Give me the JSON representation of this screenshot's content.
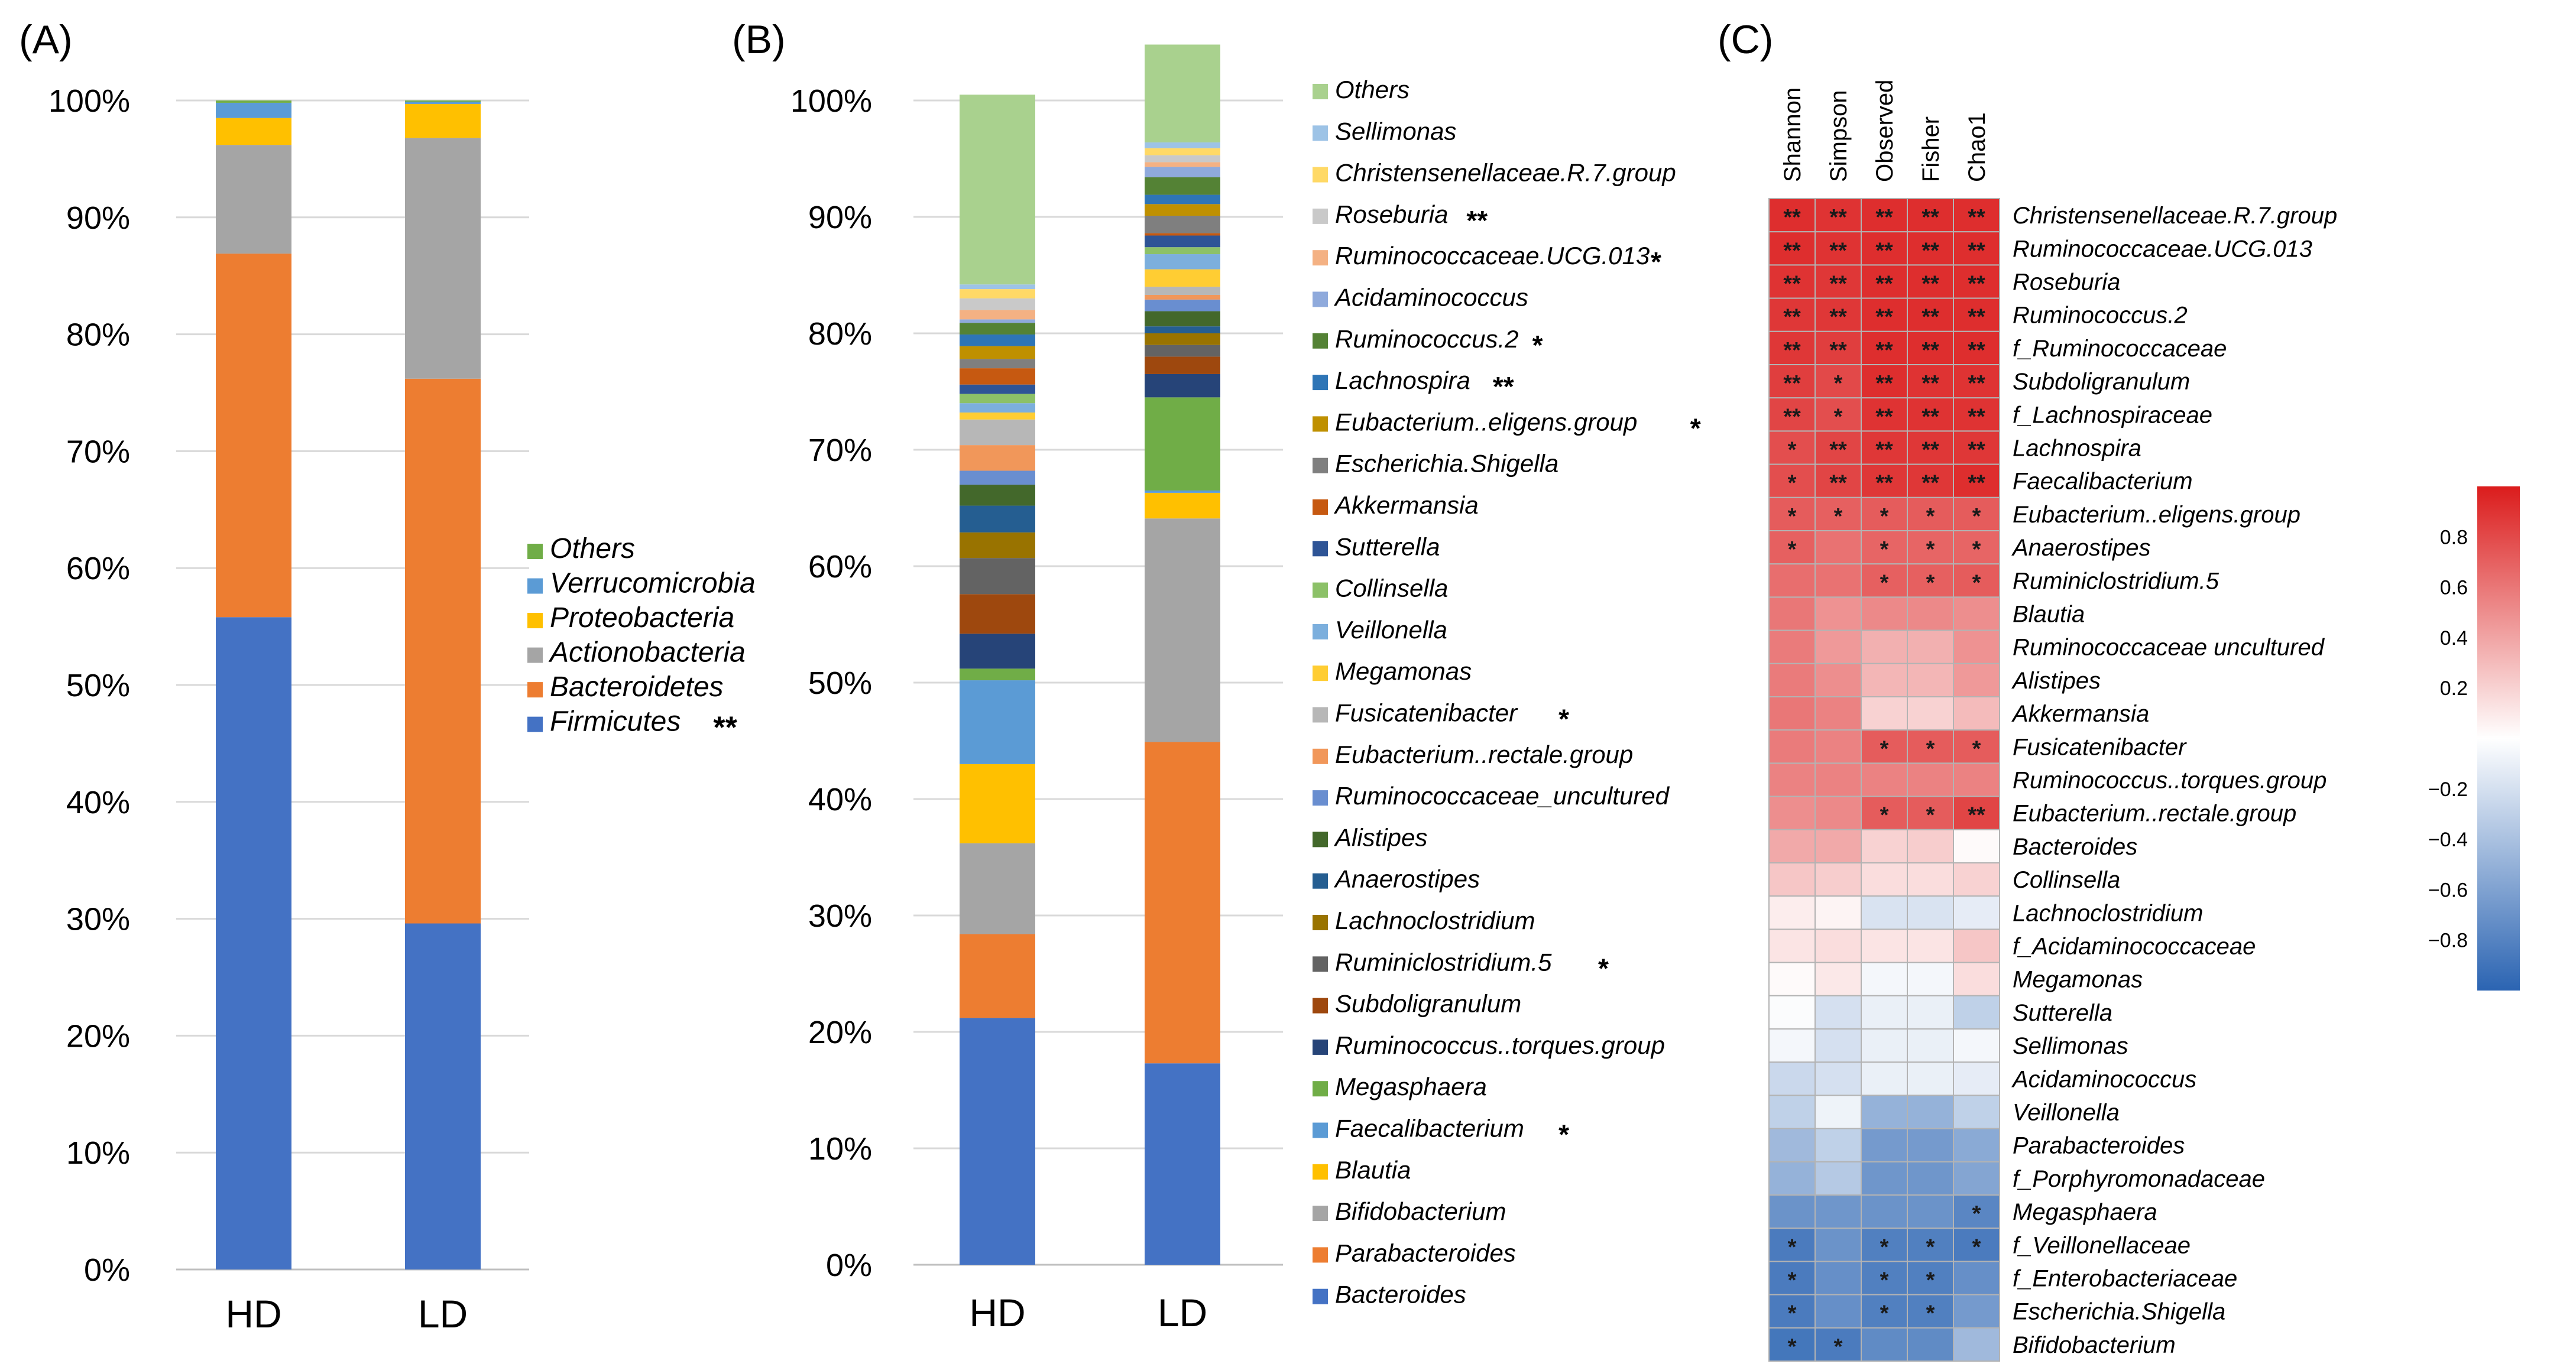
{
  "chart_data": [
    {
      "panel": "(A)",
      "type": "bar",
      "stacked": true,
      "categories": [
        "HD",
        "LD"
      ],
      "ylim": [
        0,
        100
      ],
      "yticks": [
        "0%",
        "10%",
        "20%",
        "30%",
        "40%",
        "50%",
        "60%",
        "70%",
        "80%",
        "90%",
        "100%"
      ],
      "series": [
        {
          "name": "Firmicutes",
          "marker": "**",
          "color": "#4472c4",
          "values": [
            55.8,
            29.6
          ]
        },
        {
          "name": "Bacteroidetes",
          "marker": "",
          "color": "#ed7d31",
          "values": [
            31.1,
            46.6
          ]
        },
        {
          "name": "Actionobacteria",
          "marker": "",
          "color": "#a5a5a5",
          "values": [
            9.3,
            20.6
          ]
        },
        {
          "name": "Proteobacteria",
          "marker": "",
          "color": "#ffc000",
          "values": [
            2.3,
            2.9
          ]
        },
        {
          "name": "Verrucomicrobia",
          "marker": "",
          "color": "#5b9bd5",
          "values": [
            1.3,
            0.2
          ]
        },
        {
          "name": "Others",
          "marker": "",
          "color": "#70ad47",
          "values": [
            0.2,
            0.1
          ]
        }
      ]
    },
    {
      "panel": "(B)",
      "type": "bar",
      "stacked": true,
      "categories": [
        "HD",
        "LD"
      ],
      "ylim": [
        0,
        100
      ],
      "yticks": [
        "0%",
        "10%",
        "20%",
        "30%",
        "40%",
        "50%",
        "60%",
        "70%",
        "80%",
        "90%",
        "100%"
      ],
      "series": [
        {
          "name": "Bacteroides",
          "marker": "",
          "color": "#4472c4",
          "values": [
            21.2,
            17.3
          ]
        },
        {
          "name": "Parabacteroides",
          "marker": "",
          "color": "#ed7d31",
          "values": [
            7.2,
            27.6
          ]
        },
        {
          "name": "Bifidobacterium",
          "marker": "",
          "color": "#a5a5a5",
          "values": [
            7.8,
            19.2
          ]
        },
        {
          "name": "Blautia",
          "marker": "",
          "color": "#ffc000",
          "values": [
            6.8,
            2.2
          ]
        },
        {
          "name": "Faecalibacterium",
          "marker": "*",
          "color": "#5b9bd5",
          "values": [
            7.2,
            0.2
          ]
        },
        {
          "name": "Megasphaera",
          "marker": "",
          "color": "#70ad47",
          "values": [
            1.0,
            8.0
          ]
        },
        {
          "name": "Ruminococcus..torques.group",
          "marker": "",
          "color": "#264478",
          "values": [
            3.0,
            2.0
          ]
        },
        {
          "name": "Subdoligranulum",
          "marker": "",
          "color": "#9e480e",
          "values": [
            3.4,
            1.5
          ]
        },
        {
          "name": "Ruminiclostridium.5",
          "marker": "*",
          "color": "#636363",
          "values": [
            3.1,
            1.0
          ]
        },
        {
          "name": "Lachnoclostridium",
          "marker": "",
          "color": "#997300",
          "values": [
            2.2,
            1.0
          ]
        },
        {
          "name": "Anaerostipes",
          "marker": "",
          "color": "#255e91",
          "values": [
            2.3,
            0.6
          ]
        },
        {
          "name": "Alistipes",
          "marker": "",
          "color": "#43682b",
          "values": [
            1.8,
            1.3
          ]
        },
        {
          "name": "Ruminococcaceae_uncultured",
          "marker": "",
          "color": "#698ed0",
          "values": [
            1.2,
            1.0
          ]
        },
        {
          "name": "Eubacterium..rectale.group",
          "marker": "",
          "color": "#f1975a",
          "values": [
            2.2,
            0.4
          ]
        },
        {
          "name": "Fusicatenibacter",
          "marker": "*",
          "color": "#b7b7b7",
          "values": [
            2.2,
            0.7
          ]
        },
        {
          "name": "Megamonas",
          "marker": "",
          "color": "#ffcd33",
          "values": [
            0.6,
            1.5
          ]
        },
        {
          "name": "Veillonella",
          "marker": "",
          "color": "#7cafdd",
          "values": [
            0.8,
            1.3
          ]
        },
        {
          "name": "Collinsella",
          "marker": "",
          "color": "#8cc168",
          "values": [
            0.8,
            0.6
          ]
        },
        {
          "name": "Sutterella",
          "marker": "",
          "color": "#2e5496",
          "values": [
            0.8,
            1.0
          ]
        },
        {
          "name": "Akkermansia",
          "marker": "",
          "color": "#c65911",
          "values": [
            1.4,
            0.2
          ]
        },
        {
          "name": "Escherichia.Shigella",
          "marker": "",
          "color": "#7f7f7f",
          "values": [
            0.8,
            1.5
          ]
        },
        {
          "name": "Eubacterium..eligens.group",
          "marker": "*",
          "color": "#bf9000",
          "values": [
            1.1,
            1.0
          ]
        },
        {
          "name": "Lachnospira",
          "marker": "**",
          "color": "#2e75b6",
          "values": [
            1.0,
            0.8
          ]
        },
        {
          "name": "Ruminococcus.2",
          "marker": "*",
          "color": "#548235",
          "values": [
            1.0,
            1.5
          ]
        },
        {
          "name": "Acidaminococcus",
          "marker": "",
          "color": "#8faadc",
          "values": [
            0.3,
            0.9
          ]
        },
        {
          "name": "Ruminococcaceae.UCG.013",
          "marker": "*",
          "color": "#f4b183",
          "values": [
            0.8,
            0.4
          ]
        },
        {
          "name": "Roseburia",
          "marker": "**",
          "color": "#c9c9c9",
          "values": [
            1.0,
            0.6
          ]
        },
        {
          "name": "Christensenellaceae.R.7.group",
          "marker": "",
          "color": "#ffd966",
          "values": [
            0.8,
            0.6
          ]
        },
        {
          "name": "Sellimonas",
          "marker": "",
          "color": "#9dc3e6",
          "values": [
            0.4,
            0.5
          ]
        },
        {
          "name": "Others",
          "marker": "",
          "color": "#a9d18e",
          "values": [
            16.3,
            8.4
          ]
        }
      ]
    },
    {
      "panel": "(C)",
      "type": "heatmap",
      "columns": [
        "Shannon",
        "Simpson",
        "Observed",
        "Fisher",
        "Chao1"
      ],
      "colorbar": {
        "range": [
          -1,
          1
        ],
        "ticks": [
          "0.8",
          "0.6",
          "0.4",
          "0.2",
          "−0.2",
          "−0.4",
          "−0.6",
          "−0.8"
        ],
        "tick_values": [
          0.8,
          0.6,
          0.4,
          0.2,
          -0.2,
          -0.4,
          -0.6,
          -0.8
        ]
      },
      "rows": [
        {
          "name": "Christensenellaceae.R.7.group",
          "values": [
            0.92,
            0.9,
            0.92,
            0.92,
            0.92
          ],
          "stars": [
            "**",
            "**",
            "**",
            "**",
            "**"
          ]
        },
        {
          "name": "Ruminococcaceae.UCG.013",
          "values": [
            0.92,
            0.9,
            0.92,
            0.92,
            0.92
          ],
          "stars": [
            "**",
            "**",
            "**",
            "**",
            "**"
          ]
        },
        {
          "name": "Roseburia",
          "values": [
            0.9,
            0.88,
            0.92,
            0.92,
            0.92
          ],
          "stars": [
            "**",
            "**",
            "**",
            "**",
            "**"
          ]
        },
        {
          "name": "Ruminococcus.2",
          "values": [
            0.88,
            0.88,
            0.92,
            0.92,
            0.92
          ],
          "stars": [
            "**",
            "**",
            "**",
            "**",
            "**"
          ]
        },
        {
          "name": "f_Ruminococcaceae",
          "values": [
            0.88,
            0.85,
            0.92,
            0.92,
            0.92
          ],
          "stars": [
            "**",
            "**",
            "**",
            "**",
            "**"
          ]
        },
        {
          "name": "Subdoligranulum",
          "values": [
            0.85,
            0.8,
            0.92,
            0.9,
            0.9
          ],
          "stars": [
            "**",
            "*",
            "**",
            "**",
            "**"
          ]
        },
        {
          "name": "f_Lachnospiraceae",
          "values": [
            0.82,
            0.78,
            0.9,
            0.9,
            0.9
          ],
          "stars": [
            "**",
            "*",
            "**",
            "**",
            "**"
          ]
        },
        {
          "name": "Lachnospira",
          "values": [
            0.78,
            0.82,
            0.88,
            0.88,
            0.88
          ],
          "stars": [
            "*",
            "**",
            "**",
            "**",
            "**"
          ]
        },
        {
          "name": "Faecalibacterium",
          "values": [
            0.78,
            0.82,
            0.88,
            0.88,
            0.92
          ],
          "stars": [
            "*",
            "**",
            "**",
            "**",
            "**"
          ]
        },
        {
          "name": "Eubacterium..eligens.group",
          "values": [
            0.72,
            0.7,
            0.72,
            0.72,
            0.72
          ],
          "stars": [
            "*",
            "*",
            "*",
            "*",
            "*"
          ]
        },
        {
          "name": "Anaerostipes",
          "values": [
            0.7,
            0.62,
            0.68,
            0.68,
            0.68
          ],
          "stars": [
            "*",
            "",
            "*",
            "*",
            "*"
          ]
        },
        {
          "name": "Ruminiclostridium.5",
          "values": [
            0.64,
            0.62,
            0.7,
            0.7,
            0.72
          ],
          "stars": [
            "",
            "",
            "*",
            "*",
            "*"
          ]
        },
        {
          "name": "Blautia",
          "values": [
            0.6,
            0.48,
            0.52,
            0.52,
            0.5
          ],
          "stars": [
            "",
            "",
            "",
            "",
            ""
          ]
        },
        {
          "name": "Ruminococcaceae uncultured",
          "values": [
            0.58,
            0.45,
            0.35,
            0.35,
            0.48
          ],
          "stars": [
            "",
            "",
            "",
            "",
            ""
          ]
        },
        {
          "name": "Alistipes",
          "values": [
            0.58,
            0.5,
            0.32,
            0.32,
            0.45
          ],
          "stars": [
            "",
            "",
            "",
            "",
            ""
          ]
        },
        {
          "name": "Akkermansia",
          "values": [
            0.6,
            0.55,
            0.2,
            0.2,
            0.3
          ],
          "stars": [
            "",
            "",
            "",
            "",
            ""
          ]
        },
        {
          "name": "Fusicatenibacter",
          "values": [
            0.58,
            0.55,
            0.72,
            0.72,
            0.72
          ],
          "stars": [
            "",
            "",
            "*",
            "*",
            "*"
          ]
        },
        {
          "name": "Ruminococcus..torques.group",
          "values": [
            0.55,
            0.55,
            0.55,
            0.55,
            0.55
          ],
          "stars": [
            "",
            "",
            "",
            "",
            ""
          ]
        },
        {
          "name": "Eubacterium..rectale.group",
          "values": [
            0.5,
            0.52,
            0.72,
            0.72,
            0.82
          ],
          "stars": [
            "",
            "",
            "*",
            "*",
            "**"
          ]
        },
        {
          "name": "Bacteroides",
          "values": [
            0.38,
            0.38,
            0.2,
            0.22,
            0.02
          ],
          "stars": [
            "",
            "",
            "",
            "",
            ""
          ]
        },
        {
          "name": "Collinsella",
          "values": [
            0.25,
            0.22,
            0.15,
            0.15,
            0.2
          ],
          "stars": [
            "",
            "",
            "",
            "",
            ""
          ]
        },
        {
          "name": "Lachnoclostridium",
          "values": [
            0.08,
            0.05,
            -0.18,
            -0.18,
            -0.12
          ],
          "stars": [
            "",
            "",
            "",
            "",
            ""
          ]
        },
        {
          "name": "f_Acidaminococcaceae",
          "values": [
            0.12,
            0.15,
            0.12,
            0.12,
            0.25
          ],
          "stars": [
            "",
            "",
            "",
            "",
            ""
          ]
        },
        {
          "name": "Megamonas",
          "values": [
            0.02,
            0.1,
            -0.05,
            -0.05,
            0.15
          ],
          "stars": [
            "",
            "",
            "",
            "",
            ""
          ]
        },
        {
          "name": "Sutterella",
          "values": [
            -0.02,
            -0.2,
            -0.1,
            -0.1,
            -0.3
          ],
          "stars": [
            "",
            "",
            "",
            "",
            ""
          ]
        },
        {
          "name": "Sellimonas",
          "values": [
            -0.05,
            -0.2,
            -0.1,
            -0.1,
            -0.05
          ],
          "stars": [
            "",
            "",
            "",
            "",
            ""
          ]
        },
        {
          "name": "Acidaminococcus",
          "values": [
            -0.25,
            -0.2,
            -0.1,
            -0.1,
            -0.12
          ],
          "stars": [
            "",
            "",
            "",
            "",
            ""
          ]
        },
        {
          "name": "Veillonella",
          "values": [
            -0.3,
            -0.08,
            -0.5,
            -0.5,
            -0.3
          ],
          "stars": [
            "",
            "",
            "",
            "",
            ""
          ]
        },
        {
          "name": "Parabacteroides",
          "values": [
            -0.45,
            -0.3,
            -0.65,
            -0.65,
            -0.55
          ],
          "stars": [
            "",
            "",
            "",
            "",
            ""
          ]
        },
        {
          "name": "f_Porphyromonadaceae",
          "values": [
            -0.5,
            -0.35,
            -0.68,
            -0.68,
            -0.58
          ],
          "stars": [
            "",
            "",
            "",
            "",
            ""
          ]
        },
        {
          "name": "Megasphaera",
          "values": [
            -0.7,
            -0.68,
            -0.7,
            -0.7,
            -0.78
          ],
          "stars": [
            "",
            "",
            "",
            "",
            "*"
          ]
        },
        {
          "name": "f_Veillonellaceae",
          "values": [
            -0.85,
            -0.7,
            -0.82,
            -0.82,
            -0.85
          ],
          "stars": [
            "*",
            "",
            "*",
            "*",
            "*"
          ]
        },
        {
          "name": "f_Enterobacteriaceae",
          "values": [
            -0.85,
            -0.72,
            -0.82,
            -0.82,
            -0.72
          ],
          "stars": [
            "*",
            "",
            "*",
            "*",
            ""
          ]
        },
        {
          "name": "Escherichia.Shigella",
          "values": [
            -0.85,
            -0.72,
            -0.82,
            -0.82,
            -0.65
          ],
          "stars": [
            "*",
            "",
            "*",
            "*",
            ""
          ]
        },
        {
          "name": "Bifidobacterium",
          "values": [
            -0.88,
            -0.85,
            -0.75,
            -0.75,
            -0.45
          ],
          "stars": [
            "*",
            "*",
            "",
            "",
            ""
          ]
        }
      ]
    }
  ]
}
